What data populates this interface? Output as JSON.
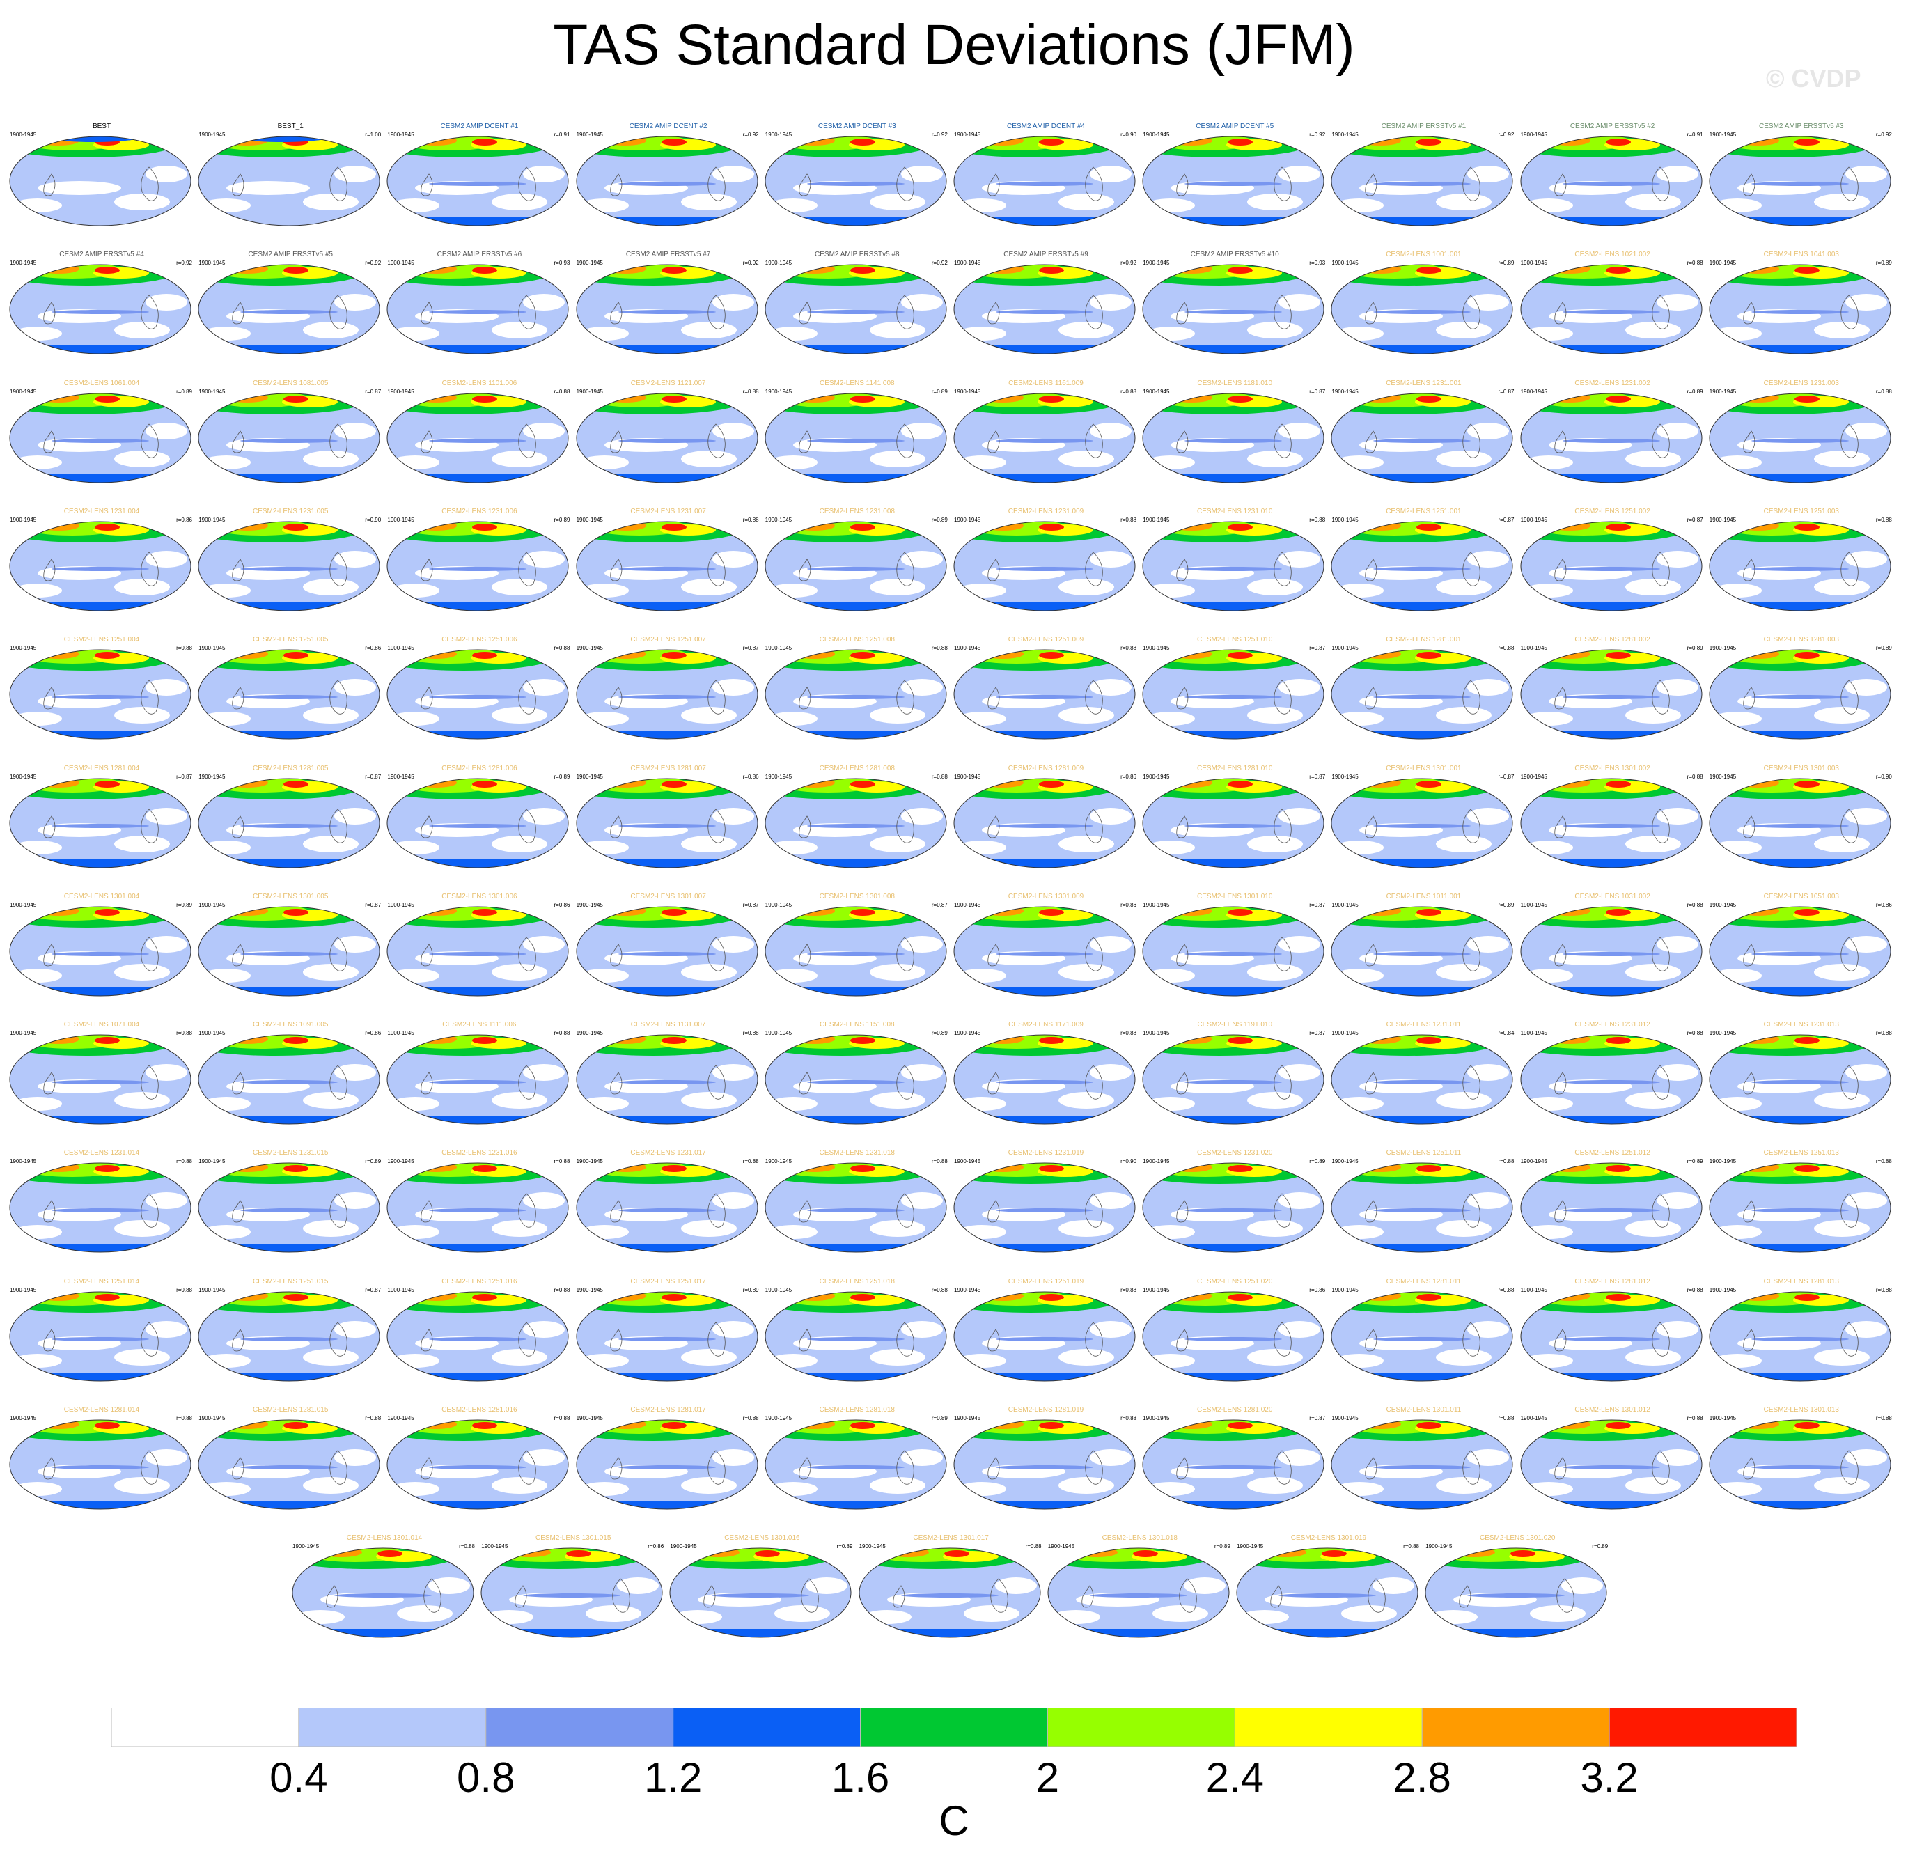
{
  "title": "TAS Standard Deviations (JFM)",
  "watermark": "© CVDP",
  "period": "1900-1945",
  "colorbar": {
    "colors": [
      "#ffffff",
      "#b4c8fa",
      "#7896f0",
      "#0a5ff5",
      "#00c832",
      "#96ff00",
      "#ffff00",
      "#ff9b00",
      "#ff1900"
    ],
    "labels": [
      "0.4",
      "0.8",
      "1.2",
      "1.6",
      "2",
      "2.4",
      "2.8",
      "3.2"
    ],
    "units": "C"
  },
  "panels": [
    {
      "title": "BEST",
      "r": "",
      "title_color": "#000000"
    },
    {
      "title": "BEST_1",
      "r": "r=1.00",
      "title_color": "#000000"
    },
    {
      "title": "CESM2 AMIP DCENT #1",
      "r": "r=0.91",
      "title_color": "#1f5fa8"
    },
    {
      "title": "CESM2 AMIP DCENT #2",
      "r": "r=0.92",
      "title_color": "#1f5fa8"
    },
    {
      "title": "CESM2 AMIP DCENT #3",
      "r": "r=0.92",
      "title_color": "#1f5fa8"
    },
    {
      "title": "CESM2 AMIP DCENT #4",
      "r": "r=0.90",
      "title_color": "#1f5fa8"
    },
    {
      "title": "CESM2 AMIP DCENT #5",
      "r": "r=0.92",
      "title_color": "#1f5fa8"
    },
    {
      "title": "CESM2 AMIP ERSSTv5 #1",
      "r": "r=0.92",
      "title_color": "#6b8e6b"
    },
    {
      "title": "CESM2 AMIP ERSSTv5 #2",
      "r": "r=0.91",
      "title_color": "#6b8e6b"
    },
    {
      "title": "CESM2 AMIP ERSSTv5 #3",
      "r": "r=0.92",
      "title_color": "#6b8e6b"
    },
    {
      "title": "CESM2 AMIP ERSSTv5 #4",
      "r": "r=0.92",
      "title_color": "#555555"
    },
    {
      "title": "CESM2 AMIP ERSSTv5 #5",
      "r": "r=0.92",
      "title_color": "#555555"
    },
    {
      "title": "CESM2 AMIP ERSSTv5 #6",
      "r": "r=0.93",
      "title_color": "#555555"
    },
    {
      "title": "CESM2 AMIP ERSSTv5 #7",
      "r": "r=0.92",
      "title_color": "#555555"
    },
    {
      "title": "CESM2 AMIP ERSSTv5 #8",
      "r": "r=0.92",
      "title_color": "#555555"
    },
    {
      "title": "CESM2 AMIP ERSSTv5 #9",
      "r": "r=0.92",
      "title_color": "#555555"
    },
    {
      "title": "CESM2 AMIP ERSSTv5 #10",
      "r": "r=0.93",
      "title_color": "#555555"
    },
    {
      "title": "CESM2-LENS 1001.001",
      "r": "r=0.89",
      "title_color": "#e8c070"
    },
    {
      "title": "CESM2-LENS 1021.002",
      "r": "r=0.88",
      "title_color": "#e8c070"
    },
    {
      "title": "CESM2-LENS 1041.003",
      "r": "r=0.89",
      "title_color": "#e8c070"
    },
    {
      "title": "CESM2-LENS 1061.004",
      "r": "r=0.89",
      "title_color": "#e8c070"
    },
    {
      "title": "CESM2-LENS 1081.005",
      "r": "r=0.87",
      "title_color": "#e8c070"
    },
    {
      "title": "CESM2-LENS 1101.006",
      "r": "r=0.88",
      "title_color": "#e8c070"
    },
    {
      "title": "CESM2-LENS 1121.007",
      "r": "r=0.88",
      "title_color": "#e8c070"
    },
    {
      "title": "CESM2-LENS 1141.008",
      "r": "r=0.89",
      "title_color": "#e8c070"
    },
    {
      "title": "CESM2-LENS 1161.009",
      "r": "r=0.88",
      "title_color": "#e8c070"
    },
    {
      "title": "CESM2-LENS 1181.010",
      "r": "r=0.87",
      "title_color": "#e8c070"
    },
    {
      "title": "CESM2-LENS 1231.001",
      "r": "r=0.87",
      "title_color": "#e8c070"
    },
    {
      "title": "CESM2-LENS 1231.002",
      "r": "r=0.89",
      "title_color": "#e8c070"
    },
    {
      "title": "CESM2-LENS 1231.003",
      "r": "r=0.88",
      "title_color": "#e8c070"
    },
    {
      "title": "CESM2-LENS 1231.004",
      "r": "r=0.86",
      "title_color": "#e8c070"
    },
    {
      "title": "CESM2-LENS 1231.005",
      "r": "r=0.90",
      "title_color": "#e8c070"
    },
    {
      "title": "CESM2-LENS 1231.006",
      "r": "r=0.89",
      "title_color": "#e8c070"
    },
    {
      "title": "CESM2-LENS 1231.007",
      "r": "r=0.88",
      "title_color": "#e8c070"
    },
    {
      "title": "CESM2-LENS 1231.008",
      "r": "r=0.89",
      "title_color": "#e8c070"
    },
    {
      "title": "CESM2-LENS 1231.009",
      "r": "r=0.88",
      "title_color": "#e8c070"
    },
    {
      "title": "CESM2-LENS 1231.010",
      "r": "r=0.88",
      "title_color": "#e8c070"
    },
    {
      "title": "CESM2-LENS 1251.001",
      "r": "r=0.87",
      "title_color": "#e8c070"
    },
    {
      "title": "CESM2-LENS 1251.002",
      "r": "r=0.87",
      "title_color": "#e8c070"
    },
    {
      "title": "CESM2-LENS 1251.003",
      "r": "r=0.88",
      "title_color": "#e8c070"
    },
    {
      "title": "CESM2-LENS 1251.004",
      "r": "r=0.88",
      "title_color": "#e8c070"
    },
    {
      "title": "CESM2-LENS 1251.005",
      "r": "r=0.86",
      "title_color": "#e8c070"
    },
    {
      "title": "CESM2-LENS 1251.006",
      "r": "r=0.88",
      "title_color": "#e8c070"
    },
    {
      "title": "CESM2-LENS 1251.007",
      "r": "r=0.87",
      "title_color": "#e8c070"
    },
    {
      "title": "CESM2-LENS 1251.008",
      "r": "r=0.88",
      "title_color": "#e8c070"
    },
    {
      "title": "CESM2-LENS 1251.009",
      "r": "r=0.88",
      "title_color": "#e8c070"
    },
    {
      "title": "CESM2-LENS 1251.010",
      "r": "r=0.87",
      "title_color": "#e8c070"
    },
    {
      "title": "CESM2-LENS 1281.001",
      "r": "r=0.88",
      "title_color": "#e8c070"
    },
    {
      "title": "CESM2-LENS 1281.002",
      "r": "r=0.89",
      "title_color": "#e8c070"
    },
    {
      "title": "CESM2-LENS 1281.003",
      "r": "r=0.89",
      "title_color": "#e8c070"
    },
    {
      "title": "CESM2-LENS 1281.004",
      "r": "r=0.87",
      "title_color": "#e8c070"
    },
    {
      "title": "CESM2-LENS 1281.005",
      "r": "r=0.87",
      "title_color": "#e8c070"
    },
    {
      "title": "CESM2-LENS 1281.006",
      "r": "r=0.89",
      "title_color": "#e8c070"
    },
    {
      "title": "CESM2-LENS 1281.007",
      "r": "r=0.86",
      "title_color": "#e8c070"
    },
    {
      "title": "CESM2-LENS 1281.008",
      "r": "r=0.88",
      "title_color": "#e8c070"
    },
    {
      "title": "CESM2-LENS 1281.009",
      "r": "r=0.86",
      "title_color": "#e8c070"
    },
    {
      "title": "CESM2-LENS 1281.010",
      "r": "r=0.87",
      "title_color": "#e8c070"
    },
    {
      "title": "CESM2-LENS 1301.001",
      "r": "r=0.87",
      "title_color": "#e8c070"
    },
    {
      "title": "CESM2-LENS 1301.002",
      "r": "r=0.88",
      "title_color": "#e8c070"
    },
    {
      "title": "CESM2-LENS 1301.003",
      "r": "r=0.90",
      "title_color": "#e8c070"
    },
    {
      "title": "CESM2-LENS 1301.004",
      "r": "r=0.89",
      "title_color": "#e8c070"
    },
    {
      "title": "CESM2-LENS 1301.005",
      "r": "r=0.87",
      "title_color": "#e8c070"
    },
    {
      "title": "CESM2-LENS 1301.006",
      "r": "r=0.86",
      "title_color": "#e8c070"
    },
    {
      "title": "CESM2-LENS 1301.007",
      "r": "r=0.87",
      "title_color": "#e8c070"
    },
    {
      "title": "CESM2-LENS 1301.008",
      "r": "r=0.87",
      "title_color": "#e8c070"
    },
    {
      "title": "CESM2-LENS 1301.009",
      "r": "r=0.86",
      "title_color": "#e8c070"
    },
    {
      "title": "CESM2-LENS 1301.010",
      "r": "r=0.87",
      "title_color": "#e8c070"
    },
    {
      "title": "CESM2-LENS 1011.001",
      "r": "r=0.89",
      "title_color": "#e8c070"
    },
    {
      "title": "CESM2-LENS 1031.002",
      "r": "r=0.88",
      "title_color": "#e8c070"
    },
    {
      "title": "CESM2-LENS 1051.003",
      "r": "r=0.86",
      "title_color": "#e8c070"
    },
    {
      "title": "CESM2-LENS 1071.004",
      "r": "r=0.88",
      "title_color": "#e8c070"
    },
    {
      "title": "CESM2-LENS 1091.005",
      "r": "r=0.86",
      "title_color": "#e8c070"
    },
    {
      "title": "CESM2-LENS 1111.006",
      "r": "r=0.88",
      "title_color": "#e8c070"
    },
    {
      "title": "CESM2-LENS 1131.007",
      "r": "r=0.88",
      "title_color": "#e8c070"
    },
    {
      "title": "CESM2-LENS 1151.008",
      "r": "r=0.89",
      "title_color": "#e8c070"
    },
    {
      "title": "CESM2-LENS 1171.009",
      "r": "r=0.88",
      "title_color": "#e8c070"
    },
    {
      "title": "CESM2-LENS 1191.010",
      "r": "r=0.87",
      "title_color": "#e8c070"
    },
    {
      "title": "CESM2-LENS 1231.011",
      "r": "r=0.84",
      "title_color": "#e8c070"
    },
    {
      "title": "CESM2-LENS 1231.012",
      "r": "r=0.88",
      "title_color": "#e8c070"
    },
    {
      "title": "CESM2-LENS 1231.013",
      "r": "r=0.88",
      "title_color": "#e8c070"
    },
    {
      "title": "CESM2-LENS 1231.014",
      "r": "r=0.88",
      "title_color": "#e8c070"
    },
    {
      "title": "CESM2-LENS 1231.015",
      "r": "r=0.89",
      "title_color": "#e8c070"
    },
    {
      "title": "CESM2-LENS 1231.016",
      "r": "r=0.88",
      "title_color": "#e8c070"
    },
    {
      "title": "CESM2-LENS 1231.017",
      "r": "r=0.88",
      "title_color": "#e8c070"
    },
    {
      "title": "CESM2-LENS 1231.018",
      "r": "r=0.88",
      "title_color": "#e8c070"
    },
    {
      "title": "CESM2-LENS 1231.019",
      "r": "r=0.90",
      "title_color": "#e8c070"
    },
    {
      "title": "CESM2-LENS 1231.020",
      "r": "r=0.89",
      "title_color": "#e8c070"
    },
    {
      "title": "CESM2-LENS 1251.011",
      "r": "r=0.88",
      "title_color": "#e8c070"
    },
    {
      "title": "CESM2-LENS 1251.012",
      "r": "r=0.89",
      "title_color": "#e8c070"
    },
    {
      "title": "CESM2-LENS 1251.013",
      "r": "r=0.88",
      "title_color": "#e8c070"
    },
    {
      "title": "CESM2-LENS 1251.014",
      "r": "r=0.88",
      "title_color": "#e8c070"
    },
    {
      "title": "CESM2-LENS 1251.015",
      "r": "r=0.87",
      "title_color": "#e8c070"
    },
    {
      "title": "CESM2-LENS 1251.016",
      "r": "r=0.88",
      "title_color": "#e8c070"
    },
    {
      "title": "CESM2-LENS 1251.017",
      "r": "r=0.89",
      "title_color": "#e8c070"
    },
    {
      "title": "CESM2-LENS 1251.018",
      "r": "r=0.88",
      "title_color": "#e8c070"
    },
    {
      "title": "CESM2-LENS 1251.019",
      "r": "r=0.88",
      "title_color": "#e8c070"
    },
    {
      "title": "CESM2-LENS 1251.020",
      "r": "r=0.86",
      "title_color": "#e8c070"
    },
    {
      "title": "CESM2-LENS 1281.011",
      "r": "r=0.88",
      "title_color": "#e8c070"
    },
    {
      "title": "CESM2-LENS 1281.012",
      "r": "r=0.88",
      "title_color": "#e8c070"
    },
    {
      "title": "CESM2-LENS 1281.013",
      "r": "r=0.88",
      "title_color": "#e8c070"
    },
    {
      "title": "CESM2-LENS 1281.014",
      "r": "r=0.88",
      "title_color": "#e8c070"
    },
    {
      "title": "CESM2-LENS 1281.015",
      "r": "r=0.88",
      "title_color": "#e8c070"
    },
    {
      "title": "CESM2-LENS 1281.016",
      "r": "r=0.88",
      "title_color": "#e8c070"
    },
    {
      "title": "CESM2-LENS 1281.017",
      "r": "r=0.88",
      "title_color": "#e8c070"
    },
    {
      "title": "CESM2-LENS 1281.018",
      "r": "r=0.89",
      "title_color": "#e8c070"
    },
    {
      "title": "CESM2-LENS 1281.019",
      "r": "r=0.88",
      "title_color": "#e8c070"
    },
    {
      "title": "CESM2-LENS 1281.020",
      "r": "r=0.87",
      "title_color": "#e8c070"
    },
    {
      "title": "CESM2-LENS 1301.011",
      "r": "r=0.88",
      "title_color": "#e8c070"
    },
    {
      "title": "CESM2-LENS 1301.012",
      "r": "r=0.88",
      "title_color": "#e8c070"
    },
    {
      "title": "CESM2-LENS 1301.013",
      "r": "r=0.88",
      "title_color": "#e8c070"
    },
    {
      "title": "CESM2-LENS 1301.014",
      "r": "r=0.88",
      "title_color": "#e8c070"
    },
    {
      "title": "CESM2-LENS 1301.015",
      "r": "r=0.86",
      "title_color": "#e8c070"
    },
    {
      "title": "CESM2-LENS 1301.016",
      "r": "r=0.89",
      "title_color": "#e8c070"
    },
    {
      "title": "CESM2-LENS 1301.017",
      "r": "r=0.88",
      "title_color": "#e8c070"
    },
    {
      "title": "CESM2-LENS 1301.018",
      "r": "r=0.89",
      "title_color": "#e8c070"
    },
    {
      "title": "CESM2-LENS 1301.019",
      "r": "r=0.88",
      "title_color": "#e8c070"
    },
    {
      "title": "CESM2-LENS 1301.020",
      "r": "r=0.89",
      "title_color": "#e8c070"
    }
  ]
}
